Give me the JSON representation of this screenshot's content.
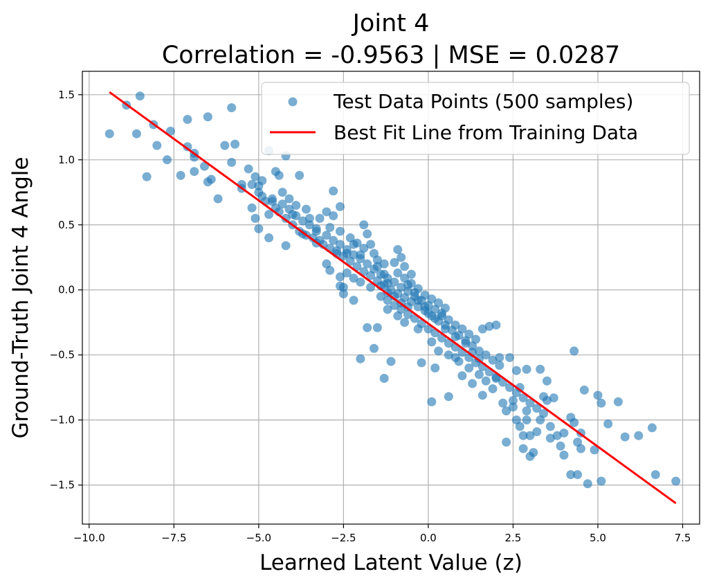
{
  "colors": {
    "points": "#1f77b4",
    "fit_line": "#ff0000",
    "grid": "#b0b0b0",
    "axes": "#000000"
  },
  "chart_data": {
    "type": "scatter",
    "title": "Joint 4",
    "subtitle": "Correlation = -0.9563 | MSE = 0.0287",
    "xlabel": "Learned Latent Value (z)",
    "ylabel": "Ground-Truth Joint 4 Angle",
    "xlim": [
      -10.2,
      8.0
    ],
    "ylim": [
      -1.8,
      1.68
    ],
    "xticks": [
      -10.0,
      -7.5,
      -5.0,
      -2.5,
      0.0,
      2.5,
      5.0,
      7.5
    ],
    "xtick_labels": [
      "−10.0",
      "−7.5",
      "−5.0",
      "−2.5",
      "0.0",
      "2.5",
      "5.0",
      "7.5"
    ],
    "yticks": [
      -1.5,
      -1.0,
      -0.5,
      0.0,
      0.5,
      1.0,
      1.5
    ],
    "ytick_labels": [
      "−1.5",
      "−1.0",
      "−0.5",
      "0.0",
      "0.5",
      "1.0",
      "1.5"
    ],
    "grid": true,
    "legend": {
      "location": "top-right",
      "entries": [
        "Test Data Points (500 samples)",
        "Best Fit Line from Training Data"
      ]
    },
    "fit_line": {
      "name": "Best Fit Line from Training Data",
      "x": [
        -9.4,
        7.3
      ],
      "y": [
        1.52,
        -1.64
      ]
    },
    "series": [
      {
        "name": "Test Data Points (500 samples)",
        "points": [
          [
            -9.4,
            1.2
          ],
          [
            -8.9,
            1.42
          ],
          [
            -8.5,
            1.49
          ],
          [
            -8.6,
            1.2
          ],
          [
            -8.1,
            1.27
          ],
          [
            -8.0,
            1.11
          ],
          [
            -8.3,
            0.87
          ],
          [
            -7.7,
            1.0
          ],
          [
            -7.6,
            1.22
          ],
          [
            -7.3,
            0.88
          ],
          [
            -7.1,
            1.31
          ],
          [
            -7.1,
            1.1
          ],
          [
            -6.9,
            1.05
          ],
          [
            -6.9,
            1.02
          ],
          [
            -6.9,
            0.91
          ],
          [
            -6.6,
            0.95
          ],
          [
            -6.5,
            0.83
          ],
          [
            -6.4,
            0.85
          ],
          [
            -6.5,
            1.33
          ],
          [
            -6.2,
            0.7
          ],
          [
            -6.0,
            1.11
          ],
          [
            -5.8,
            1.4
          ],
          [
            -5.7,
            1.12
          ],
          [
            -5.8,
            0.98
          ],
          [
            -5.5,
            0.81
          ],
          [
            -5.5,
            0.78
          ],
          [
            -5.3,
            0.93
          ],
          [
            -5.2,
            0.81
          ],
          [
            -5.1,
            0.87
          ],
          [
            -5.0,
            0.8
          ],
          [
            -4.9,
            0.84
          ],
          [
            -4.7,
            1.07
          ],
          [
            -4.5,
            0.91
          ],
          [
            -4.4,
            0.88
          ],
          [
            -4.2,
            1.03
          ],
          [
            -4.1,
            0.7
          ],
          [
            -4.3,
            0.75
          ],
          [
            -3.9,
            0.65
          ],
          [
            -3.8,
            0.88
          ],
          [
            -5.0,
            0.75
          ],
          [
            -5.2,
            0.63
          ],
          [
            -5.1,
            0.55
          ],
          [
            -5.0,
            0.47
          ],
          [
            -4.7,
            0.4
          ],
          [
            -4.2,
            0.34
          ],
          [
            -4.0,
            0.58
          ],
          [
            -3.7,
            0.43
          ],
          [
            -3.5,
            0.55
          ],
          [
            -3.3,
            0.47
          ],
          [
            -3.2,
            0.38
          ],
          [
            -3.0,
            0.6
          ],
          [
            -2.8,
            0.76
          ],
          [
            -2.6,
            0.64
          ],
          [
            -2.8,
            0.57
          ],
          [
            -2.7,
            0.3
          ],
          [
            -3.0,
            0.2
          ],
          [
            -2.9,
            0.15
          ],
          [
            -2.6,
            0.1
          ],
          [
            -2.5,
            0.02
          ],
          [
            -2.4,
            0.28
          ],
          [
            -2.2,
            0.35
          ],
          [
            -2.0,
            0.27
          ],
          [
            -1.9,
            0.5
          ],
          [
            -1.8,
            0.43
          ],
          [
            -1.9,
            0.32
          ],
          [
            -1.6,
            0.28
          ],
          [
            -1.5,
            0.18
          ],
          [
            -1.3,
            0.12
          ],
          [
            -1.2,
            0.05
          ],
          [
            -1.0,
            0.21
          ],
          [
            -0.9,
            0.31
          ],
          [
            -0.8,
            0.25
          ],
          [
            -0.7,
            0.18
          ],
          [
            -0.5,
            0.12
          ],
          [
            -0.6,
            0.04
          ],
          [
            -0.4,
            -0.02
          ],
          [
            -0.3,
            -0.08
          ],
          [
            -0.1,
            -0.13
          ],
          [
            0.0,
            -0.18
          ],
          [
            0.2,
            -0.22
          ],
          [
            0.4,
            -0.18
          ],
          [
            0.5,
            -0.3
          ],
          [
            0.8,
            -0.36
          ],
          [
            1.1,
            -0.41
          ],
          [
            1.3,
            -0.48
          ],
          [
            1.5,
            -0.53
          ],
          [
            1.8,
            -0.28
          ],
          [
            2.0,
            -0.27
          ],
          [
            1.6,
            -0.3
          ],
          [
            2.1,
            -0.52
          ],
          [
            2.4,
            -0.52
          ],
          [
            2.6,
            -0.62
          ],
          [
            2.9,
            -0.61
          ],
          [
            3.3,
            -0.61
          ],
          [
            3.5,
            -0.7
          ],
          [
            3.7,
            -0.83
          ],
          [
            3.4,
            -0.82
          ],
          [
            3.5,
            -0.85
          ],
          [
            2.7,
            -0.75
          ],
          [
            2.5,
            -0.9
          ],
          [
            2.3,
            -0.93
          ],
          [
            2.6,
            -1.0
          ],
          [
            2.7,
            -1.05
          ],
          [
            2.9,
            -1.0
          ],
          [
            2.8,
            -1.12
          ],
          [
            3.0,
            -1.12
          ],
          [
            3.2,
            -1.09
          ],
          [
            2.3,
            -1.17
          ],
          [
            2.8,
            -1.22
          ],
          [
            3.0,
            -1.28
          ],
          [
            3.1,
            -1.25
          ],
          [
            3.6,
            -1.14
          ],
          [
            3.9,
            -1.2
          ],
          [
            4.0,
            -1.27
          ],
          [
            4.2,
            -0.98
          ],
          [
            4.3,
            -1.02
          ],
          [
            4.5,
            -1.1
          ],
          [
            4.4,
            -1.17
          ],
          [
            4.5,
            -1.22
          ],
          [
            4.3,
            -0.47
          ],
          [
            4.6,
            -0.77
          ],
          [
            5.0,
            -0.81
          ],
          [
            5.1,
            -0.87
          ],
          [
            5.6,
            -0.86
          ],
          [
            5.3,
            -1.03
          ],
          [
            4.9,
            -1.23
          ],
          [
            4.2,
            -1.42
          ],
          [
            4.4,
            -1.42
          ],
          [
            4.7,
            -1.49
          ],
          [
            5.1,
            -1.47
          ],
          [
            5.8,
            -1.13
          ],
          [
            6.2,
            -1.12
          ],
          [
            6.6,
            -1.06
          ],
          [
            6.7,
            -1.42
          ],
          [
            7.3,
            -1.47
          ],
          [
            -1.1,
            -0.55
          ],
          [
            -1.3,
            -0.68
          ],
          [
            -2.0,
            -0.53
          ],
          [
            -1.6,
            -0.45
          ],
          [
            -1.5,
            -0.29
          ],
          [
            -1.8,
            -0.29
          ],
          [
            -2.2,
            -0.08
          ],
          [
            -2.6,
            0.03
          ],
          [
            -2.5,
            -0.03
          ],
          [
            0.1,
            -0.86
          ],
          [
            0.6,
            -0.82
          ],
          [
            -0.2,
            -0.56
          ],
          [
            0.2,
            -0.6
          ],
          [
            0.8,
            -0.52
          ],
          [
            1.0,
            -0.66
          ],
          [
            1.3,
            -0.72
          ],
          [
            1.6,
            -0.81
          ],
          [
            1.9,
            -0.76
          ],
          [
            2.0,
            -0.68
          ],
          [
            2.2,
            -0.87
          ],
          [
            -4.7,
            0.58
          ],
          [
            -4.5,
            0.63
          ],
          [
            -4.6,
            0.68
          ],
          [
            -4.3,
            0.66
          ],
          [
            -4.4,
            0.6
          ],
          [
            -4.2,
            0.55
          ],
          [
            -4.0,
            0.5
          ],
          [
            -3.8,
            0.45
          ],
          [
            -3.6,
            0.42
          ],
          [
            -3.4,
            0.4
          ],
          [
            -3.3,
            0.36
          ],
          [
            -3.1,
            0.35
          ],
          [
            -2.9,
            0.32
          ],
          [
            -2.7,
            0.28
          ],
          [
            -2.5,
            0.26
          ],
          [
            -2.3,
            0.22
          ],
          [
            -2.1,
            0.18
          ],
          [
            -1.9,
            0.14
          ],
          [
            -1.7,
            0.11
          ],
          [
            -1.5,
            0.07
          ],
          [
            -1.3,
            0.04
          ],
          [
            -1.1,
            0.0
          ],
          [
            -0.9,
            -0.03
          ],
          [
            -0.7,
            -0.06
          ],
          [
            -0.5,
            -0.09
          ],
          [
            -0.3,
            -0.13
          ],
          [
            -0.1,
            -0.16
          ],
          [
            0.1,
            -0.2
          ],
          [
            0.3,
            -0.24
          ],
          [
            0.5,
            -0.27
          ],
          [
            0.7,
            -0.31
          ],
          [
            0.9,
            -0.35
          ],
          [
            1.1,
            -0.39
          ],
          [
            1.3,
            -0.43
          ],
          [
            1.5,
            -0.47
          ],
          [
            1.7,
            -0.5
          ],
          [
            1.9,
            -0.54
          ],
          [
            2.1,
            -0.58
          ],
          [
            -4.9,
            0.72
          ],
          [
            -4.8,
            0.68
          ],
          [
            -4.6,
            0.7
          ],
          [
            -4.1,
            0.62
          ],
          [
            -3.9,
            0.57
          ],
          [
            -3.7,
            0.53
          ],
          [
            -3.5,
            0.5
          ],
          [
            -3.3,
            0.45
          ],
          [
            -3.0,
            0.42
          ],
          [
            -2.8,
            0.38
          ],
          [
            -2.6,
            0.35
          ],
          [
            -2.4,
            0.31
          ],
          [
            -2.2,
            0.27
          ],
          [
            -2.0,
            0.24
          ],
          [
            -1.8,
            0.2
          ],
          [
            -1.6,
            0.16
          ],
          [
            -1.4,
            0.12
          ],
          [
            -1.2,
            0.09
          ],
          [
            -1.0,
            0.06
          ],
          [
            -0.8,
            0.02
          ],
          [
            -0.6,
            -0.01
          ],
          [
            -0.4,
            -0.05
          ],
          [
            -0.2,
            -0.08
          ],
          [
            0.0,
            -0.12
          ],
          [
            0.2,
            -0.15
          ],
          [
            0.4,
            -0.2
          ],
          [
            0.6,
            -0.23
          ],
          [
            0.8,
            -0.27
          ],
          [
            1.0,
            -0.3
          ],
          [
            1.2,
            -0.34
          ],
          [
            1.4,
            -0.38
          ],
          [
            -1.2,
            -0.08
          ],
          [
            -1.0,
            -0.12
          ],
          [
            -0.8,
            -0.15
          ],
          [
            -0.6,
            -0.19
          ],
          [
            -0.4,
            -0.22
          ],
          [
            -0.2,
            -0.26
          ],
          [
            0.0,
            -0.3
          ],
          [
            0.2,
            -0.33
          ],
          [
            0.4,
            -0.37
          ],
          [
            0.6,
            -0.41
          ],
          [
            0.8,
            -0.44
          ],
          [
            1.0,
            -0.48
          ],
          [
            1.2,
            -0.52
          ],
          [
            1.4,
            -0.56
          ],
          [
            1.6,
            -0.59
          ],
          [
            1.8,
            -0.63
          ],
          [
            2.0,
            -0.67
          ],
          [
            2.2,
            -0.71
          ],
          [
            2.4,
            -0.75
          ],
          [
            2.6,
            -0.79
          ],
          [
            2.8,
            -0.83
          ],
          [
            3.0,
            -0.87
          ],
          [
            3.2,
            -0.91
          ],
          [
            3.4,
            -0.95
          ],
          [
            -1.4,
            0.03
          ],
          [
            -1.2,
            -0.02
          ],
          [
            -1.0,
            -0.05
          ],
          [
            -0.8,
            -0.1
          ],
          [
            -0.6,
            -0.13
          ],
          [
            -0.9,
            0.13
          ],
          [
            -0.7,
            0.09
          ],
          [
            -0.5,
            0.05
          ],
          [
            -0.3,
            0.01
          ],
          [
            -0.1,
            -0.04
          ],
          [
            0.1,
            -0.07
          ],
          [
            0.3,
            -0.1
          ],
          [
            0.5,
            -0.14
          ],
          [
            -3.6,
            0.62
          ],
          [
            -3.2,
            0.55
          ],
          [
            -2.9,
            0.48
          ],
          [
            -2.6,
            0.45
          ],
          [
            -2.3,
            0.4
          ],
          [
            -2.1,
            0.36
          ],
          [
            -1.7,
            0.35
          ],
          [
            -1.5,
            0.23
          ],
          [
            -1.3,
            0.2
          ],
          [
            -2.4,
            0.13
          ],
          [
            -2.2,
            0.09
          ],
          [
            -2.0,
            0.06
          ],
          [
            -1.7,
            0.02
          ],
          [
            -1.4,
            -0.05
          ],
          [
            -1.2,
            -0.15
          ],
          [
            -0.9,
            -0.2
          ],
          [
            -0.7,
            -0.25
          ],
          [
            -0.3,
            -0.3
          ],
          [
            0.1,
            -0.4
          ],
          [
            0.3,
            -0.47
          ],
          [
            0.6,
            -0.5
          ],
          [
            0.9,
            -0.55
          ],
          [
            1.2,
            -0.6
          ],
          [
            1.5,
            -0.65
          ],
          [
            1.7,
            -0.7
          ],
          [
            2.5,
            -0.85
          ],
          [
            2.9,
            -0.93
          ],
          [
            3.3,
            -1.0
          ],
          [
            3.6,
            -1.05
          ],
          [
            3.8,
            -1.12
          ],
          [
            4.0,
            -1.1
          ]
        ]
      }
    ]
  }
}
